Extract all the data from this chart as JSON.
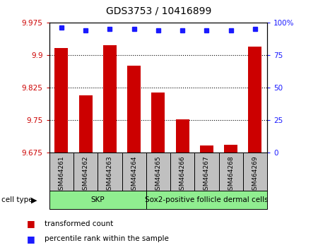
{
  "title": "GDS3753 / 10416899",
  "samples": [
    "GSM464261",
    "GSM464262",
    "GSM464263",
    "GSM464264",
    "GSM464265",
    "GSM464266",
    "GSM464267",
    "GSM464268",
    "GSM464269"
  ],
  "transformed_counts": [
    9.916,
    9.807,
    9.923,
    9.876,
    9.813,
    9.751,
    9.691,
    9.693,
    9.92
  ],
  "percentile_ranks": [
    96,
    94,
    95,
    95,
    94,
    94,
    94,
    94,
    95
  ],
  "ylim_left": [
    9.675,
    9.975
  ],
  "ylim_right": [
    0,
    100
  ],
  "yticks_left": [
    9.675,
    9.75,
    9.825,
    9.9,
    9.975
  ],
  "yticks_right": [
    0,
    25,
    50,
    75,
    100
  ],
  "ytick_labels_left": [
    "9.675",
    "9.75",
    "9.825",
    "9.9",
    "9.975"
  ],
  "ytick_labels_right": [
    "0",
    "25",
    "50",
    "75",
    "100%"
  ],
  "cell_groups": [
    {
      "label": "SKP",
      "start": 0,
      "end": 4,
      "color": "#90EE90"
    },
    {
      "label": "Sox2-positive follicle dermal cells",
      "start": 4,
      "end": 9,
      "color": "#90EE90"
    }
  ],
  "bar_color": "#CC0000",
  "dot_color": "#1a1aff",
  "bg_color": "#ffffff",
  "left_tick_color": "#CC0000",
  "right_tick_color": "#1a1aff",
  "xlabel_area_color": "#C0C0C0"
}
